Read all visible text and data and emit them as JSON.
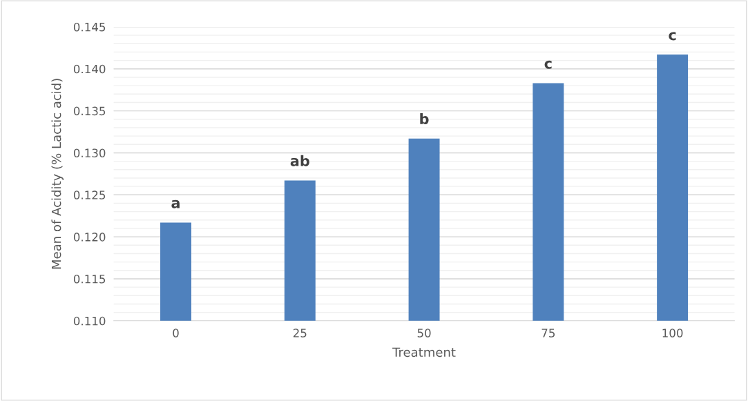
{
  "chart_data": {
    "type": "bar",
    "xlabel": "Treatment",
    "ylabel": "Mean of Acidity (% Lactic acid)",
    "categories": [
      "0",
      "25",
      "50",
      "75",
      "100"
    ],
    "values": [
      0.1217,
      0.1267,
      0.1317,
      0.1383,
      0.1417
    ],
    "color": "#4f81bd",
    "ylim": [
      0.11,
      0.145
    ],
    "yticks": [
      {
        "value": 0.11,
        "label": "0.110"
      },
      {
        "value": 0.115,
        "label": "0.115"
      },
      {
        "value": 0.12,
        "label": "0.120"
      },
      {
        "value": 0.125,
        "label": "0.125"
      },
      {
        "value": 0.13,
        "label": "0.130"
      },
      {
        "value": 0.135,
        "label": "0.135"
      },
      {
        "value": 0.14,
        "label": "0.140"
      },
      {
        "value": 0.145,
        "label": "0.145"
      }
    ],
    "grid": "y",
    "annotations": [
      {
        "text": "a",
        "x": "0",
        "y": 0.1217
      },
      {
        "text": "ab",
        "x": "25",
        "y": 0.1267
      },
      {
        "text": "b",
        "x": "50",
        "y": 0.1317
      },
      {
        "text": "c",
        "x": "75",
        "y": 0.1383
      },
      {
        "text": "c",
        "x": "100",
        "y": 0.1417
      }
    ]
  }
}
